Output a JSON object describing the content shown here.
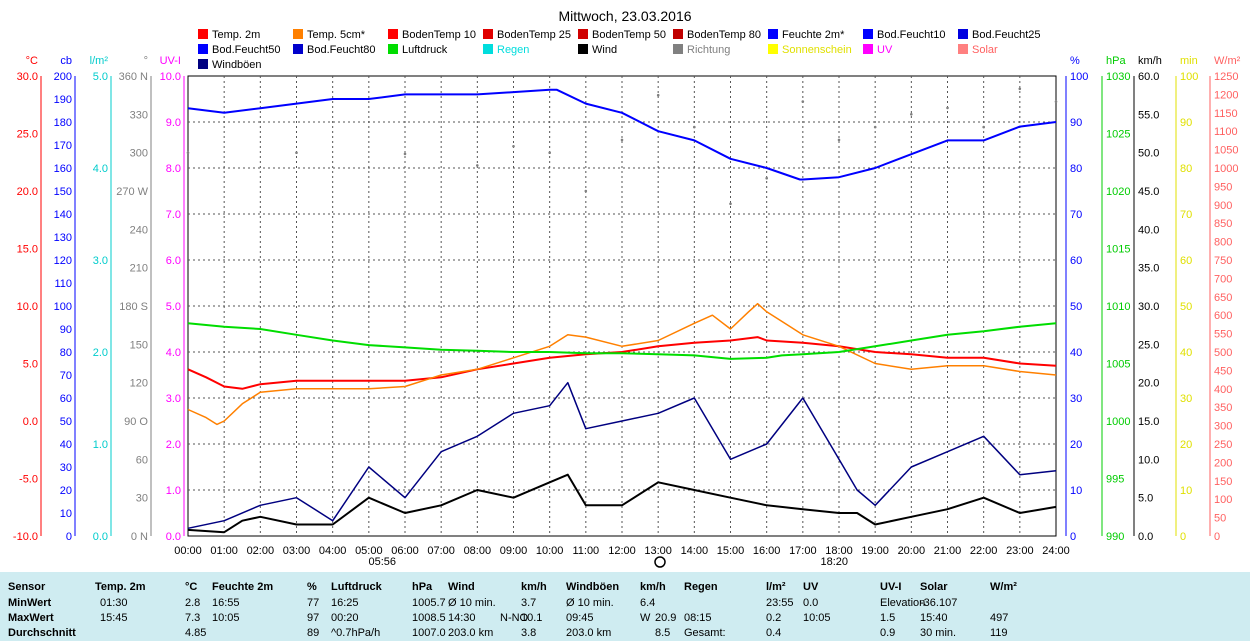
{
  "title": "Mittwoch, 23.03.2016",
  "legend": [
    {
      "label": "Temp. 2m",
      "color": "#ff0000",
      "text_color": "#000000"
    },
    {
      "label": "Temp. 5cm*",
      "color": "#ff8000",
      "text_color": "#000000"
    },
    {
      "label": "BodenTemp 10",
      "color": "#ff0000",
      "text_color": "#000000"
    },
    {
      "label": "BodenTemp 25",
      "color": "#e00000",
      "text_color": "#000000"
    },
    {
      "label": "BodenTemp 50",
      "color": "#d00000",
      "text_color": "#000000"
    },
    {
      "label": "BodenTemp 80",
      "color": "#c00000",
      "text_color": "#000000"
    },
    {
      "label": "Feuchte 2m*",
      "color": "#0000ff",
      "text_color": "#000000"
    },
    {
      "label": "Bod.Feucht10",
      "color": "#0000ff",
      "text_color": "#000000"
    },
    {
      "label": "Bod.Feucht25",
      "color": "#0000e0",
      "text_color": "#000000"
    },
    {
      "label": "Bod.Feucht50",
      "color": "#0000ff",
      "text_color": "#000000"
    },
    {
      "label": "Bod.Feucht80",
      "color": "#0000cc",
      "text_color": "#000000"
    },
    {
      "label": "Luftdruck",
      "color": "#00dd00",
      "text_color": "#000000"
    },
    {
      "label": "Regen",
      "color": "#00dddd",
      "text_color": "#00dddd"
    },
    {
      "label": "Wind",
      "color": "#000000",
      "text_color": "#000000"
    },
    {
      "label": "Richtung",
      "color": "#808080",
      "text_color": "#808080"
    },
    {
      "label": "Sonnenschein",
      "color": "#ffff00",
      "text_color": "#e0e000"
    },
    {
      "label": "UV",
      "color": "#ff00ff",
      "text_color": "#ff00ff"
    },
    {
      "label": "Solar",
      "color": "#ff8080",
      "text_color": "#ff6060"
    },
    {
      "label": "Windböen",
      "color": "#000080",
      "text_color": "#000000"
    }
  ],
  "axes_left": [
    {
      "unit": "°C",
      "color": "#ff0000",
      "ticks": [
        "30.0",
        "25.0",
        "20.0",
        "15.0",
        "10.0",
        "5.0",
        "0.0",
        "-5.0",
        "-10.0"
      ]
    },
    {
      "unit": "cb",
      "color": "#0000ff",
      "ticks": [
        "200",
        "190",
        "180",
        "170",
        "160",
        "150",
        "140",
        "130",
        "120",
        "110",
        "100",
        "90",
        "80",
        "70",
        "60",
        "50",
        "40",
        "30",
        "20",
        "10",
        "0"
      ]
    },
    {
      "unit": "l/m²",
      "color": "#00cccc",
      "ticks": [
        "5.0",
        "4.0",
        "3.0",
        "2.0",
        "1.0",
        "0.0"
      ]
    },
    {
      "unit": "°",
      "color": "#808080",
      "ticks": [
        "360 N",
        "330",
        "300",
        "270 W",
        "240",
        "210",
        "180 S",
        "150",
        "120",
        "90 O",
        "60",
        "30",
        "0 N"
      ]
    },
    {
      "unit": "UV-I",
      "color": "#ff00ff",
      "ticks": [
        "10.0",
        "9.0",
        "8.0",
        "7.0",
        "6.0",
        "5.0",
        "4.0",
        "3.0",
        "2.0",
        "1.0",
        "0.0"
      ]
    }
  ],
  "axes_right": [
    {
      "unit": "%",
      "color": "#0000ff",
      "ticks": [
        "100",
        "90",
        "80",
        "70",
        "60",
        "50",
        "40",
        "30",
        "20",
        "10",
        "0"
      ]
    },
    {
      "unit": "hPa",
      "color": "#00cc00",
      "ticks": [
        "1030",
        "1025",
        "1020",
        "1015",
        "1010",
        "1005",
        "1000",
        "995",
        "990"
      ]
    },
    {
      "unit": "km/h",
      "color": "#000000",
      "ticks": [
        "60.0",
        "55.0",
        "50.0",
        "45.0",
        "40.0",
        "35.0",
        "30.0",
        "25.0",
        "20.0",
        "15.0",
        "10.0",
        "5.0",
        "0.0"
      ]
    },
    {
      "unit": "min",
      "color": "#e0e000",
      "ticks": [
        "100",
        "90",
        "80",
        "70",
        "60",
        "50",
        "40",
        "30",
        "20",
        "10",
        "0"
      ]
    },
    {
      "unit": "W/m²",
      "color": "#ff6060",
      "ticks": [
        "1250",
        "1200",
        "1150",
        "1100",
        "1050",
        "1000",
        "950",
        "900",
        "850",
        "800",
        "750",
        "700",
        "650",
        "600",
        "550",
        "500",
        "450",
        "400",
        "350",
        "300",
        "250",
        "200",
        "150",
        "100",
        "50",
        "0"
      ]
    }
  ],
  "x_ticks": [
    "00:00",
    "01:00",
    "02:00",
    "03:00",
    "04:00",
    "05:00",
    "06:00",
    "07:00",
    "08:00",
    "09:00",
    "10:00",
    "11:00",
    "12:00",
    "13:00",
    "14:00",
    "15:00",
    "16:00",
    "17:00",
    "18:00",
    "19:00",
    "20:00",
    "21:00",
    "22:00",
    "23:00",
    "24:00"
  ],
  "sunrise": "05:56",
  "sunset": "18:20",
  "chart_data": {
    "type": "line",
    "title": "Mittwoch, 23.03.2016",
    "x_unit": "hour",
    "x_range": [
      0,
      24
    ],
    "series": [
      {
        "name": "Temp. 2m",
        "unit": "°C",
        "color": "#ff0000",
        "points": [
          [
            0,
            4.5
          ],
          [
            0.5,
            3.8
          ],
          [
            1,
            3.0
          ],
          [
            1.5,
            2.8
          ],
          [
            2,
            3.2
          ],
          [
            3,
            3.5
          ],
          [
            4,
            3.5
          ],
          [
            5,
            3.5
          ],
          [
            6,
            3.5
          ],
          [
            7,
            3.8
          ],
          [
            8,
            4.5
          ],
          [
            9,
            5.0
          ],
          [
            10,
            5.5
          ],
          [
            11,
            5.8
          ],
          [
            12,
            6.0
          ],
          [
            13,
            6.5
          ],
          [
            14,
            6.8
          ],
          [
            15,
            7.0
          ],
          [
            15.75,
            7.3
          ],
          [
            16,
            7.0
          ],
          [
            17,
            6.8
          ],
          [
            18,
            6.5
          ],
          [
            19,
            6.0
          ],
          [
            20,
            5.8
          ],
          [
            21,
            5.5
          ],
          [
            22,
            5.5
          ],
          [
            23,
            5.0
          ],
          [
            24,
            4.8
          ]
        ]
      },
      {
        "name": "Temp. 5cm*",
        "unit": "°C",
        "color": "#ff8000",
        "points": [
          [
            0,
            1.0
          ],
          [
            0.5,
            0.3
          ],
          [
            0.8,
            -0.3
          ],
          [
            1,
            0
          ],
          [
            1.5,
            1.5
          ],
          [
            2,
            2.5
          ],
          [
            3,
            2.8
          ],
          [
            4,
            2.8
          ],
          [
            5,
            2.8
          ],
          [
            6,
            3.0
          ],
          [
            7,
            4.0
          ],
          [
            8,
            4.5
          ],
          [
            9,
            5.5
          ],
          [
            10,
            6.5
          ],
          [
            10.5,
            7.5
          ],
          [
            11,
            7.3
          ],
          [
            12,
            6.5
          ],
          [
            13,
            7.0
          ],
          [
            14,
            8.5
          ],
          [
            14.5,
            9.2
          ],
          [
            15,
            8.0
          ],
          [
            15.5,
            9.5
          ],
          [
            15.75,
            10.2
          ],
          [
            16,
            9.5
          ],
          [
            16.5,
            8.5
          ],
          [
            17,
            7.5
          ],
          [
            18,
            6.5
          ],
          [
            19,
            5.0
          ],
          [
            20,
            4.5
          ],
          [
            21,
            4.8
          ],
          [
            22,
            4.8
          ],
          [
            23,
            4.3
          ],
          [
            24,
            4.0
          ]
        ]
      },
      {
        "name": "Feuchte 2m*",
        "unit": "%",
        "color": "#0000ff",
        "points": [
          [
            0,
            93
          ],
          [
            1,
            92
          ],
          [
            2,
            93
          ],
          [
            3,
            94
          ],
          [
            4,
            95
          ],
          [
            5,
            95
          ],
          [
            6,
            96
          ],
          [
            7,
            96
          ],
          [
            8,
            96
          ],
          [
            9,
            96.5
          ],
          [
            10,
            97
          ],
          [
            10.2,
            97
          ],
          [
            11,
            94
          ],
          [
            12,
            92
          ],
          [
            13,
            88
          ],
          [
            14,
            86
          ],
          [
            15,
            82
          ],
          [
            16,
            80
          ],
          [
            16.92,
            77.5
          ],
          [
            17,
            77.5
          ],
          [
            18,
            78
          ],
          [
            19,
            80
          ],
          [
            20,
            83
          ],
          [
            21,
            86
          ],
          [
            22,
            86
          ],
          [
            23,
            89
          ],
          [
            24,
            90
          ]
        ]
      },
      {
        "name": "Luftdruck",
        "unit": "hPa",
        "color": "#00dd00",
        "points": [
          [
            0,
            1008.5
          ],
          [
            1,
            1008.2
          ],
          [
            2,
            1008
          ],
          [
            3,
            1007.5
          ],
          [
            4,
            1007
          ],
          [
            5,
            1006.6
          ],
          [
            6,
            1006.4
          ],
          [
            7,
            1006.2
          ],
          [
            8,
            1006.1
          ],
          [
            9,
            1006
          ],
          [
            10,
            1006
          ],
          [
            11,
            1005.9
          ],
          [
            12,
            1005.9
          ],
          [
            13,
            1005.8
          ],
          [
            14,
            1005.7
          ],
          [
            15,
            1005.4
          ],
          [
            16,
            1005.5
          ],
          [
            16.42,
            1005.7
          ],
          [
            17,
            1005.8
          ],
          [
            18,
            1006
          ],
          [
            19,
            1006.5
          ],
          [
            20,
            1007
          ],
          [
            21,
            1007.5
          ],
          [
            22,
            1007.8
          ],
          [
            23,
            1008.2
          ],
          [
            24,
            1008.5
          ]
        ]
      },
      {
        "name": "Wind",
        "unit": "km/h",
        "color": "#000000",
        "points": [
          [
            0,
            0.8
          ],
          [
            1,
            0.5
          ],
          [
            1.5,
            2
          ],
          [
            2,
            2.5
          ],
          [
            3,
            1.5
          ],
          [
            4,
            1.5
          ],
          [
            5,
            5
          ],
          [
            6,
            3
          ],
          [
            7,
            4
          ],
          [
            8,
            6
          ],
          [
            9,
            5
          ],
          [
            10,
            7
          ],
          [
            10.5,
            8
          ],
          [
            11,
            4
          ],
          [
            12,
            4
          ],
          [
            13,
            7
          ],
          [
            14,
            6
          ],
          [
            15,
            5
          ],
          [
            16,
            4
          ],
          [
            17,
            3.5
          ],
          [
            18,
            3
          ],
          [
            18.5,
            3
          ],
          [
            19,
            1.5
          ],
          [
            20,
            2.5
          ],
          [
            21,
            3.5
          ],
          [
            22,
            5
          ],
          [
            23,
            3
          ],
          [
            24,
            3.8
          ]
        ]
      },
      {
        "name": "Windböen",
        "unit": "km/h",
        "color": "#000080",
        "points": [
          [
            0,
            1
          ],
          [
            1,
            2
          ],
          [
            2,
            4
          ],
          [
            3,
            5
          ],
          [
            4,
            2
          ],
          [
            5,
            9
          ],
          [
            6,
            5
          ],
          [
            7,
            11
          ],
          [
            8,
            13
          ],
          [
            9,
            16
          ],
          [
            10,
            17
          ],
          [
            10.5,
            20
          ],
          [
            11,
            14
          ],
          [
            12,
            15
          ],
          [
            13,
            16
          ],
          [
            14,
            18
          ],
          [
            15,
            10
          ],
          [
            16,
            12
          ],
          [
            17,
            18
          ],
          [
            18,
            10
          ],
          [
            18.5,
            6
          ],
          [
            19,
            4
          ],
          [
            20,
            9
          ],
          [
            21,
            11
          ],
          [
            22,
            13
          ],
          [
            23,
            8
          ],
          [
            24,
            8.5
          ]
        ]
      },
      {
        "name": "Richtung",
        "unit": "°",
        "color": "#808080",
        "points": [
          [
            0,
            300
          ],
          [
            3,
            300
          ],
          [
            6,
            299
          ],
          [
            8,
            290
          ],
          [
            9,
            305
          ],
          [
            10,
            300
          ],
          [
            11,
            270
          ],
          [
            12,
            310
          ],
          [
            13,
            345
          ],
          [
            14,
            320
          ],
          [
            15,
            260
          ],
          [
            16,
            280
          ],
          [
            17,
            340
          ],
          [
            18,
            310
          ],
          [
            19,
            320
          ],
          [
            20,
            330
          ],
          [
            21,
            335
          ],
          [
            22,
            320
          ],
          [
            23,
            350
          ],
          [
            24,
            340
          ]
        ]
      }
    ]
  },
  "stats": {
    "header": [
      "Sensor",
      "Temp. 2m",
      "°C",
      "Feuchte 2m",
      "%",
      "Luftdruck",
      "hPa",
      "Wind",
      "km/h",
      "Windböen",
      "km/h",
      "Regen",
      "l/m²",
      "UV",
      "UV-I",
      "Solar",
      "W/m²"
    ],
    "rows": [
      [
        "MinWert",
        "01:30",
        "2.8",
        "16:55",
        "77",
        "16:25",
        "1005.7",
        "Ø 10 min.",
        "",
        "3.7",
        "Ø 10 min.",
        "6.4",
        "",
        "",
        "23:55",
        "0.0",
        "Elevation",
        "-36.107"
      ],
      [
        "MaxWert",
        "15:45",
        "7.3",
        "10:05",
        "97",
        "00:20",
        "1008.5",
        "14:30",
        "N-NO",
        "10.1",
        "09:45",
        "W",
        "20.9",
        "08:15",
        "0.2",
        "10:05",
        "1.5",
        "15:40",
        "497"
      ],
      [
        "Durchschnitt",
        "",
        "4.85",
        "",
        "89",
        "^0.7hPa/h",
        "1007.0",
        "203.0 km",
        "",
        "3.8",
        "203.0 km",
        "",
        "8.5",
        "Gesamt:",
        "0.4",
        "",
        "0.9",
        "30 min.",
        "119"
      ]
    ]
  }
}
